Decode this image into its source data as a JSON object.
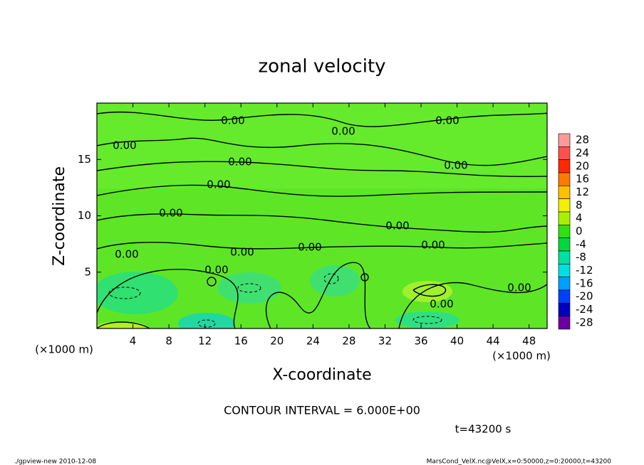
{
  "chart_data": {
    "type": "contour",
    "title": "zonal velocity",
    "x_label": "X-coordinate",
    "y_label": "Z-coordinate",
    "x_unit": "(×1000 m)",
    "xlim": [
      0,
      50
    ],
    "xticks": [
      4,
      8,
      12,
      16,
      20,
      24,
      28,
      32,
      36,
      40,
      44,
      48
    ],
    "ylim": [
      0,
      20
    ],
    "yticks": [
      5,
      10,
      15
    ],
    "colorbar": {
      "levels": [
        28,
        24,
        20,
        16,
        12,
        8,
        4,
        0,
        -4,
        -8,
        -12,
        -16,
        -20,
        -24,
        -28
      ],
      "colors": [
        "#ff9a9a",
        "#ff5050",
        "#ff2a00",
        "#ff7a00",
        "#ffc000",
        "#f0f000",
        "#a8f000",
        "#30e010",
        "#00d840",
        "#00e0a0",
        "#00e0e0",
        "#00a0ff",
        "#0040ff",
        "#0000c0",
        "#6a00a0"
      ]
    },
    "contour_labels": [
      "0.00",
      "0.00",
      "0.00",
      "0.00",
      "0.00",
      "0.00",
      "0.00",
      "0.00",
      "0.00",
      "0.00",
      "0.00",
      "0.00",
      "0.00",
      "0.00",
      "0.00",
      "0.00"
    ],
    "contour_interval": "CONTOUR INTERVAL = 6.000E+00",
    "time_label": "t=43200 s",
    "footer_left": "./gpview-new  2010-12-08",
    "footer_right": "MarsCond_VelX.nc@VelX,x=0:50000,z=0:20000,t=43200"
  }
}
